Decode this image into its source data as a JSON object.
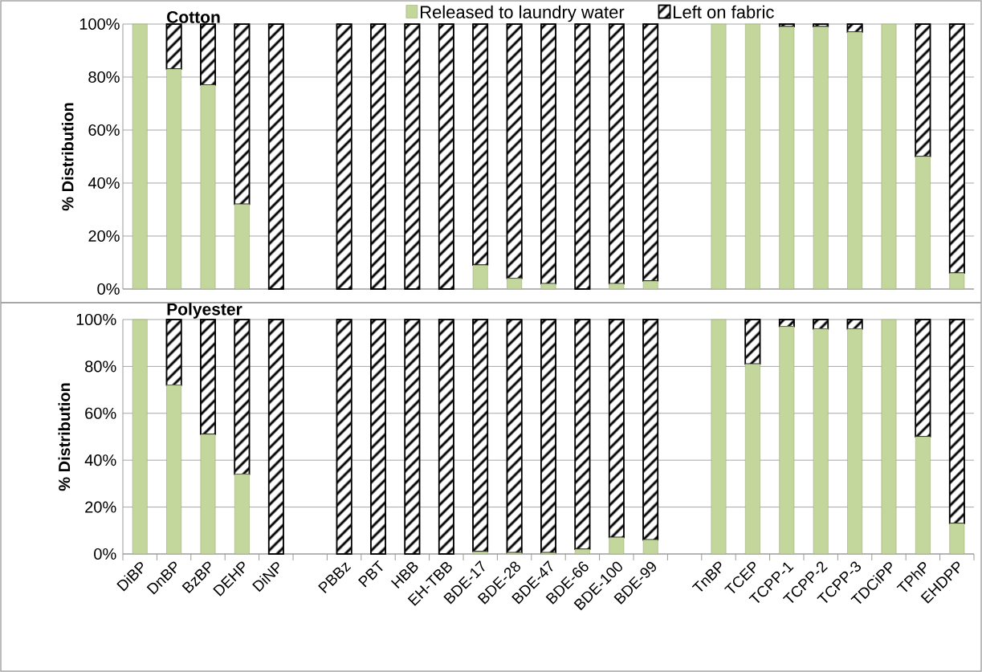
{
  "chart_data": [
    {
      "type": "bar",
      "title": "Cotton",
      "stacked": true,
      "ylabel": "% Distribution",
      "ylim": [
        0,
        100
      ],
      "yticks": [
        {
          "value": 0,
          "label": "0%"
        },
        {
          "value": 20,
          "label": "20%"
        },
        {
          "value": 40,
          "label": "40%"
        },
        {
          "value": 60,
          "label": "60%"
        },
        {
          "value": 80,
          "label": "80%"
        },
        {
          "value": 100,
          "label": "100%"
        }
      ],
      "grid": "y",
      "legend": "top",
      "tick_labels": "y",
      "categories": [
        null,
        null,
        null,
        null,
        null,
        null,
        null,
        null,
        null,
        null,
        null,
        null,
        null,
        null,
        null,
        null,
        null,
        null,
        null,
        null,
        null,
        null,
        null,
        null,
        null
      ],
      "series": [
        {
          "name": "Released to laundry water",
          "color": "#c3d69b",
          "values": [
            100,
            83,
            77,
            32,
            0,
            null,
            0,
            0,
            0,
            0,
            9,
            4,
            2,
            0,
            2,
            3,
            null,
            100,
            100,
            99,
            99,
            97,
            100,
            50,
            6
          ]
        },
        {
          "name": "Left on fabric",
          "color": "#000000",
          "values": [
            0,
            17,
            23,
            68,
            100,
            null,
            100,
            100,
            100,
            100,
            91,
            96,
            98,
            100,
            98,
            97,
            null,
            0,
            0,
            1,
            1,
            3,
            0,
            50,
            94
          ]
        }
      ]
    },
    {
      "type": "bar",
      "title": "Polyester",
      "stacked": true,
      "ylabel": "% Distribution",
      "ylim": [
        0,
        100
      ],
      "yticks": [
        {
          "value": 0,
          "label": "0%"
        },
        {
          "value": 20,
          "label": "20%"
        },
        {
          "value": 40,
          "label": "40%"
        },
        {
          "value": 60,
          "label": "60%"
        },
        {
          "value": 80,
          "label": "80%"
        },
        {
          "value": 100,
          "label": "100%"
        }
      ],
      "grid": "y",
      "categories": [
        "DiBP",
        "DnBP",
        "BzBP",
        "DEHP",
        "DiNP",
        null,
        "PBBz",
        "PBT",
        "HBB",
        "EH-TBB",
        "BDE-17",
        "BDE-28",
        "BDE-47",
        "BDE-66",
        "BDE-100",
        "BDE-99",
        null,
        "TnBP",
        "TCEP",
        "TCPP-1",
        "TCPP-2",
        "TCPP-3",
        "TDCiPP",
        "TPhP",
        "EHDPP"
      ],
      "series": [
        {
          "color": "#c3d69b",
          "values": [
            100,
            72,
            51,
            34,
            0,
            null,
            0,
            0,
            0,
            0,
            1,
            0.5,
            0.5,
            2,
            7,
            6,
            null,
            100,
            81,
            97,
            96,
            96,
            100,
            50,
            13
          ]
        },
        {
          "color": "#000000",
          "values": [
            0,
            28,
            49,
            66,
            100,
            null,
            100,
            100,
            100,
            100,
            99,
            99.5,
            99.5,
            98,
            93,
            94,
            null,
            0,
            19,
            3,
            4,
            4,
            0,
            50,
            87
          ]
        }
      ]
    }
  ]
}
